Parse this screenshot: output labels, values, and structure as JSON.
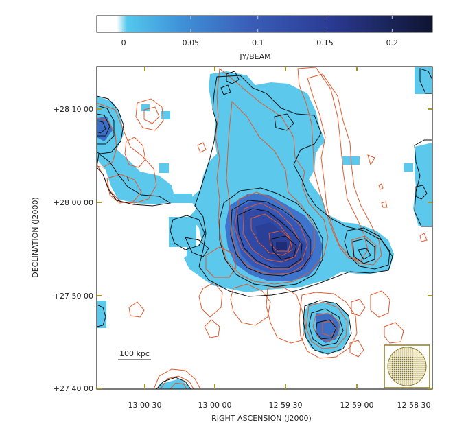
{
  "colorbar": {
    "ticks": [
      "0",
      "0.05",
      "0.1",
      "0.15",
      "0.2"
    ],
    "tick_values": [
      0,
      0.05,
      0.1,
      0.15,
      0.2
    ],
    "range": [
      -0.02,
      0.23
    ],
    "label": "JY/BEAM",
    "colors": [
      "#ffffff",
      "#53c8ee",
      "#3a72c8",
      "#2a3f98",
      "#101838"
    ]
  },
  "axes": {
    "xlabel": "RIGHT ASCENSION (J2000)",
    "ylabel": "DECLINATION (J2000)",
    "x_ticks": [
      "13 00 30",
      "13 00 00",
      "12 59 30",
      "12 59 00",
      "12 58 30"
    ],
    "y_ticks": [
      "+28 10 00",
      "+28 00 00",
      "+27 50 00",
      "+27 40 00"
    ]
  },
  "scalebar": {
    "label": "100 kpc"
  },
  "overlay": {
    "contour_colors": {
      "radio": "#000000",
      "xray": "#e05a2e"
    },
    "pixel_color": "#5bc8ec",
    "core_color": "#3558b8",
    "beam_color": "#8a7d30"
  }
}
